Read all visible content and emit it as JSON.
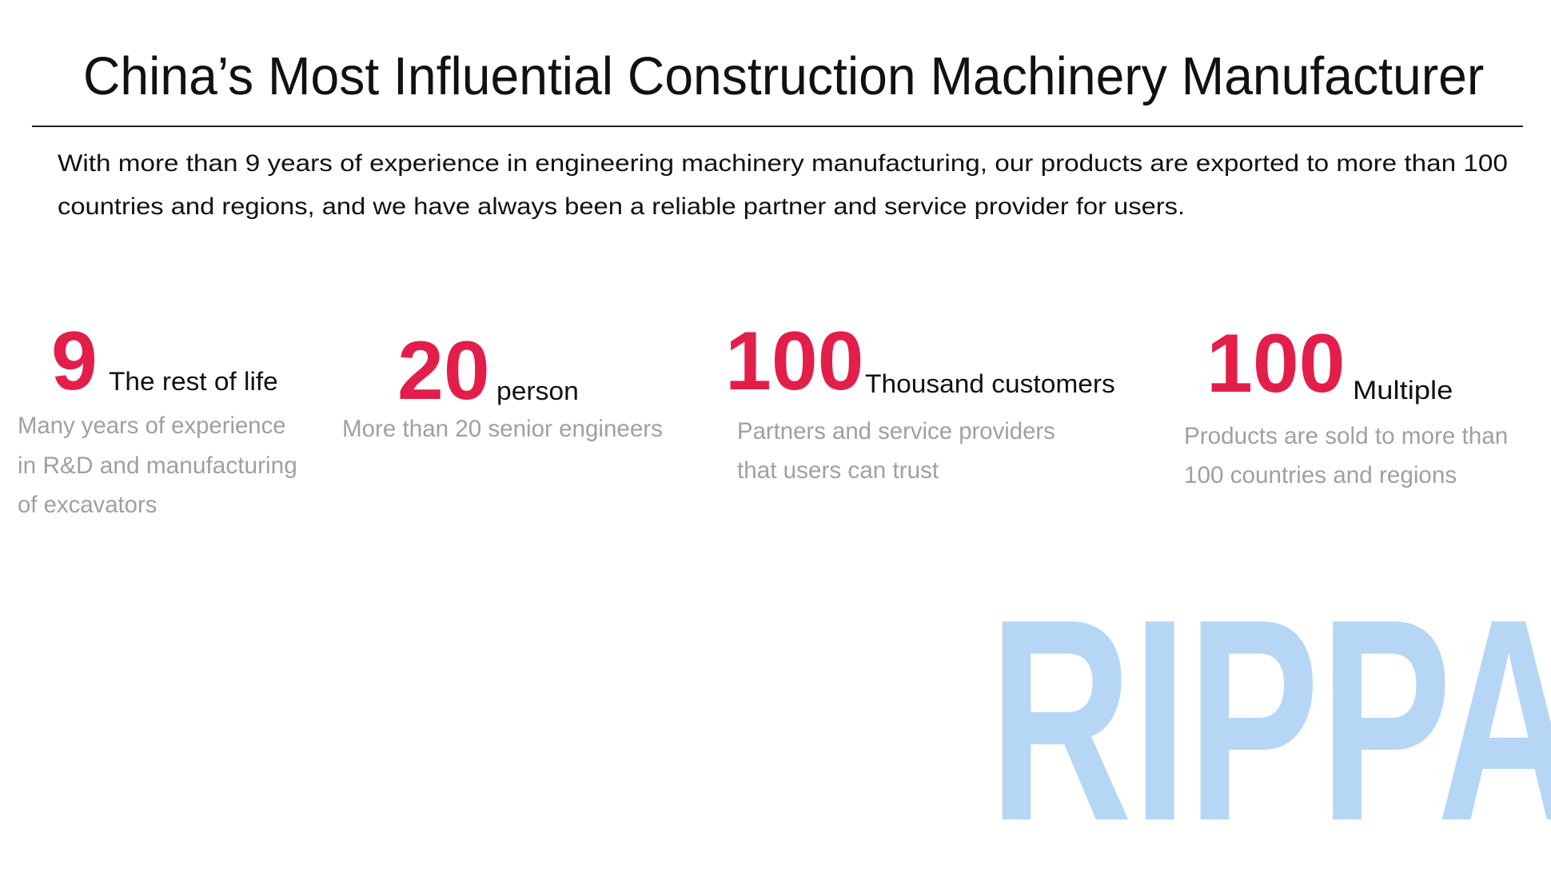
{
  "title": "China’s Most Influential Construction Machinery Manufacturer",
  "intro": {
    "lines": [
      "With more than 9 years of experience in engineering machinery manufacturing, our products are exported to more than 100",
      "countries and regions, and we have always been a reliable partner and service provider for users."
    ]
  },
  "stats": [
    {
      "number": "9",
      "label": "The rest of life",
      "desc": [
        "Many years of experience",
        "in R&D and manufacturing",
        "of excavators"
      ]
    },
    {
      "number": "20",
      "label": "person",
      "desc": [
        "More than 20 senior engineers"
      ]
    },
    {
      "number": "100",
      "label": "Thousand customers",
      "desc": [
        "Partners and service providers",
        "that users can trust"
      ]
    },
    {
      "number": "100",
      "label": "Multiple",
      "desc": [
        "Products are sold to more than",
        "100 countries and regions"
      ]
    }
  ],
  "watermark": "RIPPA",
  "colors": {
    "accent": "#e31e4a",
    "watermark": "#b6d6f6",
    "muted": "#a0a0a0"
  }
}
